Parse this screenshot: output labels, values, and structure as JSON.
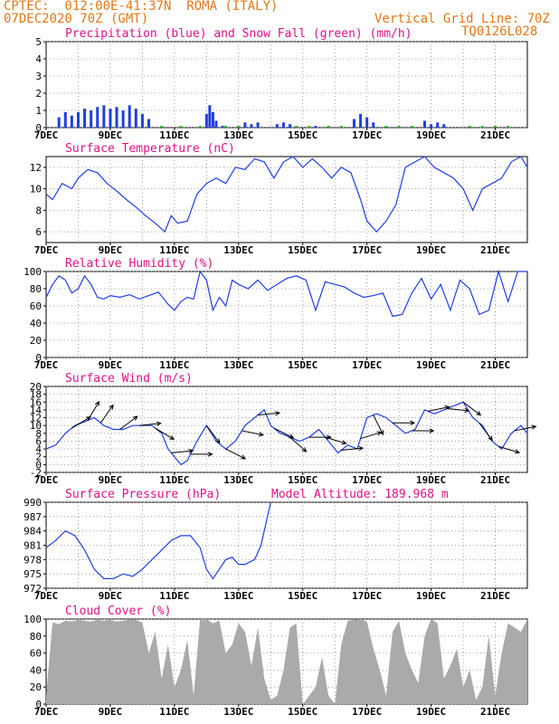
{
  "header": {
    "line1": "CPTEC:  012:00E-41:37N  ROMA (ITALY)",
    "line2": "07DEC2020 70Z (GMT)",
    "grid_note": "Vertical Grid Line: 70Z",
    "code": "TQ0126L028"
  },
  "colors": {
    "orange": "#e07818",
    "magenta": "#e0108a",
    "blue": "#1f3fe0",
    "green": "#20b020",
    "gray": "#aaaaaa"
  },
  "chart_data": [
    {
      "id": "precip",
      "type": "bar",
      "title": "Precipitation (blue) and Snow Fall (green) (mm/h)",
      "x_labels": [
        "7DEC",
        "9DEC",
        "11DEC",
        "13DEC",
        "15DEC",
        "17DEC",
        "19DEC",
        "21DEC"
      ],
      "ylim": [
        0,
        5
      ],
      "yticks": [
        0,
        1,
        2,
        3,
        4,
        5
      ],
      "series": [
        {
          "color": "blue",
          "x": [
            7.4,
            7.6,
            7.8,
            8.0,
            8.2,
            8.4,
            8.6,
            8.8,
            9.0,
            9.2,
            9.4,
            9.6,
            9.8,
            10.0,
            10.2,
            12.0,
            12.1,
            12.2,
            12.3,
            12.5,
            13.2,
            13.4,
            13.6,
            14.2,
            14.4,
            14.6,
            15.4,
            16.6,
            16.8,
            17.0,
            17.2,
            18.8,
            19.0,
            19.2,
            19.4
          ],
          "values": [
            0.6,
            0.9,
            0.7,
            0.9,
            1.1,
            1.0,
            1.2,
            1.3,
            1.1,
            1.2,
            1.0,
            1.3,
            1.1,
            0.8,
            0.5,
            0.8,
            1.3,
            0.9,
            0.4,
            0.1,
            0.3,
            0.2,
            0.3,
            0.2,
            0.3,
            0.2,
            0.1,
            0.5,
            0.8,
            0.6,
            0.3,
            0.4,
            0.2,
            0.3,
            0.2
          ]
        },
        {
          "color": "green",
          "x": [
            10.6,
            11.2,
            11.8,
            12.6,
            13.0,
            14.8,
            15.2,
            15.8,
            16.2,
            17.6,
            18.0,
            18.4,
            20.2,
            20.6,
            21.0,
            21.4
          ],
          "values": [
            0.1,
            0.1,
            0.1,
            0.1,
            0.1,
            0.1,
            0.1,
            0.1,
            0.1,
            0.1,
            0.1,
            0.1,
            0.1,
            0.1,
            0.1,
            0.1
          ]
        }
      ]
    },
    {
      "id": "temp",
      "type": "line",
      "title": "Surface Temperature (nC)",
      "x_labels": [
        "7DEC",
        "9DEC",
        "11DEC",
        "13DEC",
        "15DEC",
        "17DEC",
        "19DEC",
        "21DEC"
      ],
      "ylim": [
        5,
        13
      ],
      "yticks": [
        6,
        8,
        10,
        12
      ],
      "series": [
        {
          "color": "blue",
          "x": [
            7.0,
            7.2,
            7.5,
            7.8,
            8.0,
            8.3,
            8.6,
            8.9,
            9.2,
            9.5,
            9.8,
            10.1,
            10.4,
            10.7,
            10.9,
            11.1,
            11.4,
            11.7,
            12.0,
            12.3,
            12.6,
            12.9,
            13.2,
            13.5,
            13.8,
            14.1,
            14.4,
            14.7,
            15.0,
            15.3,
            15.6,
            15.9,
            16.2,
            16.5,
            16.8,
            17.0,
            17.3,
            17.6,
            17.9,
            18.2,
            18.5,
            18.8,
            19.1,
            19.4,
            19.7,
            20.0,
            20.3,
            20.6,
            20.9,
            21.2,
            21.5,
            21.8,
            22.0
          ],
          "values": [
            9.5,
            9.0,
            10.5,
            10.0,
            11.0,
            11.8,
            11.5,
            10.5,
            9.8,
            9.0,
            8.3,
            7.5,
            6.8,
            6.0,
            7.5,
            6.8,
            7.0,
            9.5,
            10.5,
            11.0,
            10.5,
            12.0,
            11.8,
            12.8,
            12.5,
            11.0,
            12.5,
            13.0,
            12.0,
            12.8,
            12.0,
            11.0,
            12.0,
            11.5,
            9.0,
            7.0,
            6.0,
            7.0,
            8.5,
            12.0,
            12.5,
            13.0,
            12.0,
            11.5,
            11.0,
            10.0,
            8.0,
            10.0,
            10.5,
            11.0,
            12.5,
            13.0,
            12.0
          ]
        }
      ]
    },
    {
      "id": "rh",
      "type": "line",
      "title": "Relative Humidity (%)",
      "x_labels": [
        "7DEC",
        "9DEC",
        "11DEC",
        "13DEC",
        "15DEC",
        "17DEC",
        "19DEC",
        "21DEC"
      ],
      "ylim": [
        0,
        100
      ],
      "yticks": [
        0,
        20,
        40,
        60,
        80,
        100
      ],
      "series": [
        {
          "color": "blue",
          "x": [
            7.0,
            7.2,
            7.4,
            7.6,
            7.8,
            8.0,
            8.2,
            8.4,
            8.6,
            8.8,
            9.0,
            9.3,
            9.6,
            9.9,
            10.2,
            10.5,
            10.8,
            11.0,
            11.2,
            11.4,
            11.6,
            11.8,
            12.0,
            12.2,
            12.4,
            12.6,
            12.8,
            13.0,
            13.3,
            13.6,
            13.9,
            14.2,
            14.5,
            14.8,
            15.1,
            15.4,
            15.7,
            16.0,
            16.3,
            16.6,
            16.9,
            17.2,
            17.5,
            17.8,
            18.1,
            18.4,
            18.7,
            19.0,
            19.3,
            19.6,
            19.9,
            20.2,
            20.5,
            20.8,
            21.1,
            21.4,
            21.7,
            22.0
          ],
          "values": [
            70,
            85,
            95,
            90,
            75,
            80,
            95,
            85,
            70,
            68,
            72,
            70,
            73,
            68,
            72,
            76,
            62,
            55,
            65,
            70,
            68,
            100,
            90,
            55,
            70,
            60,
            90,
            85,
            80,
            90,
            78,
            85,
            92,
            95,
            90,
            55,
            88,
            85,
            82,
            75,
            70,
            72,
            75,
            48,
            50,
            75,
            92,
            68,
            85,
            55,
            90,
            80,
            50,
            55,
            100,
            65,
            100,
            100
          ]
        }
      ]
    },
    {
      "id": "wind",
      "type": "line",
      "title": "Surface Wind (m/s)",
      "x_labels": [
        "7DEC",
        "9DEC",
        "11DEC",
        "13DEC",
        "15DEC",
        "17DEC",
        "19DEC",
        "21DEC"
      ],
      "ylim": [
        -2,
        20
      ],
      "yticks": [
        -2,
        0,
        2,
        4,
        6,
        8,
        10,
        12,
        14,
        16,
        18,
        20
      ],
      "series": [
        {
          "color": "blue",
          "x": [
            7.0,
            7.3,
            7.6,
            7.9,
            8.2,
            8.5,
            8.8,
            9.1,
            9.4,
            9.7,
            10.0,
            10.3,
            10.6,
            10.8,
            11.0,
            11.2,
            11.4,
            11.7,
            12.0,
            12.3,
            12.6,
            12.9,
            13.2,
            13.5,
            13.8,
            14.0,
            14.3,
            14.6,
            14.9,
            15.2,
            15.5,
            15.8,
            16.1,
            16.4,
            16.7,
            17.0,
            17.3,
            17.6,
            17.9,
            18.2,
            18.5,
            18.8,
            19.1,
            19.4,
            19.7,
            20.0,
            20.3,
            20.6,
            20.9,
            21.2,
            21.5,
            21.8,
            22.0
          ],
          "values": [
            4,
            5,
            8,
            10,
            11,
            12,
            10,
            9,
            9,
            10,
            10,
            10,
            8,
            4,
            2,
            0,
            1,
            6,
            10,
            6,
            4,
            6,
            10,
            12,
            14,
            10,
            8,
            7,
            6,
            7,
            9,
            6,
            3,
            5,
            4,
            12,
            13,
            12,
            10,
            8,
            9,
            14,
            13,
            14,
            15,
            16,
            12,
            10,
            6,
            4,
            8,
            10,
            8
          ]
        }
      ],
      "arrows": [
        {
          "x": 7.8,
          "u": 1.0,
          "v": 0.6
        },
        {
          "x": 8.3,
          "u": 0.6,
          "v": 1.0
        },
        {
          "x": 8.7,
          "u": 0.7,
          "v": 1.0
        },
        {
          "x": 9.3,
          "u": 0.8,
          "v": 0.6
        },
        {
          "x": 9.9,
          "u": 1.0,
          "v": 0.1
        },
        {
          "x": 10.4,
          "u": 1.0,
          "v": -0.6
        },
        {
          "x": 10.9,
          "u": 1.0,
          "v": 0.1
        },
        {
          "x": 11.5,
          "u": 1.0,
          "v": 0.0
        },
        {
          "x": 12.0,
          "u": 0.6,
          "v": -0.8
        },
        {
          "x": 12.6,
          "u": 1.0,
          "v": -0.5
        },
        {
          "x": 13.1,
          "u": 1.0,
          "v": -0.2
        },
        {
          "x": 13.6,
          "u": 1.0,
          "v": 0.1
        },
        {
          "x": 14.1,
          "u": 1.0,
          "v": -0.5
        },
        {
          "x": 14.6,
          "u": 0.8,
          "v": -0.7
        },
        {
          "x": 15.2,
          "u": 1.0,
          "v": 0.0
        },
        {
          "x": 15.7,
          "u": 1.0,
          "v": -0.3
        },
        {
          "x": 16.2,
          "u": 1.0,
          "v": 0.1
        },
        {
          "x": 16.8,
          "u": 1.0,
          "v": 0.3
        },
        {
          "x": 17.2,
          "u": 0.5,
          "v": -1.0
        },
        {
          "x": 17.8,
          "u": 1.0,
          "v": 0.0
        },
        {
          "x": 18.4,
          "u": 1.0,
          "v": 0.0
        },
        {
          "x": 18.9,
          "u": 1.0,
          "v": 0.2
        },
        {
          "x": 19.5,
          "u": 1.0,
          "v": -0.1
        },
        {
          "x": 20.0,
          "u": 0.8,
          "v": -0.6
        },
        {
          "x": 20.5,
          "u": 0.6,
          "v": -0.8
        },
        {
          "x": 21.1,
          "u": 1.0,
          "v": -0.3
        },
        {
          "x": 21.6,
          "u": 1.0,
          "v": 0.2
        }
      ]
    },
    {
      "id": "pressure",
      "type": "line",
      "title": "Surface Pressure (hPa)",
      "note": "Model Altitude: 189.968 m",
      "x_labels": [
        "7DEC",
        "9DEC",
        "11DEC",
        "13DEC",
        "15DEC",
        "17DEC",
        "19DEC",
        "21DEC"
      ],
      "ylim": [
        972,
        990
      ],
      "yticks": [
        972,
        975,
        978,
        981,
        984,
        987,
        990
      ],
      "series": [
        {
          "color": "blue",
          "x": [
            7.0,
            7.3,
            7.6,
            7.9,
            8.2,
            8.5,
            8.8,
            9.1,
            9.4,
            9.7,
            10.0,
            10.3,
            10.6,
            10.9,
            11.2,
            11.5,
            11.8,
            12.0,
            12.2,
            12.4,
            12.6,
            12.8,
            13.0,
            13.2,
            13.5,
            13.7,
            13.9,
            14.0
          ],
          "values": [
            980.5,
            982,
            984,
            983,
            980,
            976,
            974,
            974,
            975,
            974.5,
            976,
            978,
            980,
            982,
            983,
            983,
            980.5,
            976,
            974,
            976,
            978,
            978.5,
            977,
            977,
            978,
            981,
            987,
            990
          ]
        }
      ]
    },
    {
      "id": "cloud",
      "type": "area",
      "title": "Cloud Cover (%)",
      "x_labels": [
        "7DEC",
        "9DEC",
        "11DEC",
        "13DEC",
        "15DEC",
        "17DEC",
        "19DEC",
        "21DEC"
      ],
      "ylim": [
        0,
        100
      ],
      "yticks": [
        0,
        20,
        40,
        60,
        80,
        100
      ],
      "series": [
        {
          "color": "gray",
          "x": [
            7.0,
            7.2,
            7.4,
            7.6,
            7.8,
            8.0,
            8.2,
            8.4,
            8.6,
            8.8,
            9.0,
            9.2,
            9.4,
            9.6,
            9.8,
            10.0,
            10.2,
            10.4,
            10.6,
            10.8,
            11.0,
            11.2,
            11.4,
            11.6,
            11.8,
            12.0,
            12.2,
            12.4,
            12.6,
            12.8,
            13.0,
            13.2,
            13.4,
            13.6,
            13.8,
            14.0,
            14.2,
            14.4,
            14.6,
            14.8,
            15.0,
            15.2,
            15.4,
            15.6,
            15.8,
            16.0,
            16.2,
            16.4,
            16.6,
            16.8,
            17.0,
            17.2,
            17.4,
            17.6,
            17.8,
            18.0,
            18.2,
            18.4,
            18.6,
            18.8,
            19.0,
            19.2,
            19.4,
            19.6,
            19.8,
            20.0,
            20.2,
            20.4,
            20.6,
            20.8,
            21.0,
            21.2,
            21.4,
            21.6,
            21.8,
            22.0
          ],
          "values": [
            10,
            96,
            94,
            98,
            97,
            99,
            98,
            97,
            99,
            98,
            99,
            97,
            98,
            99,
            99,
            96,
            60,
            85,
            30,
            70,
            20,
            40,
            75,
            10,
            100,
            100,
            95,
            98,
            60,
            70,
            95,
            85,
            45,
            90,
            30,
            5,
            10,
            40,
            90,
            95,
            0,
            10,
            20,
            55,
            10,
            0,
            70,
            98,
            99,
            100,
            97,
            65,
            40,
            10,
            85,
            98,
            60,
            40,
            25,
            80,
            100,
            95,
            30,
            45,
            65,
            20,
            40,
            5,
            20,
            80,
            10,
            60,
            95,
            90,
            85,
            100
          ]
        }
      ]
    }
  ]
}
